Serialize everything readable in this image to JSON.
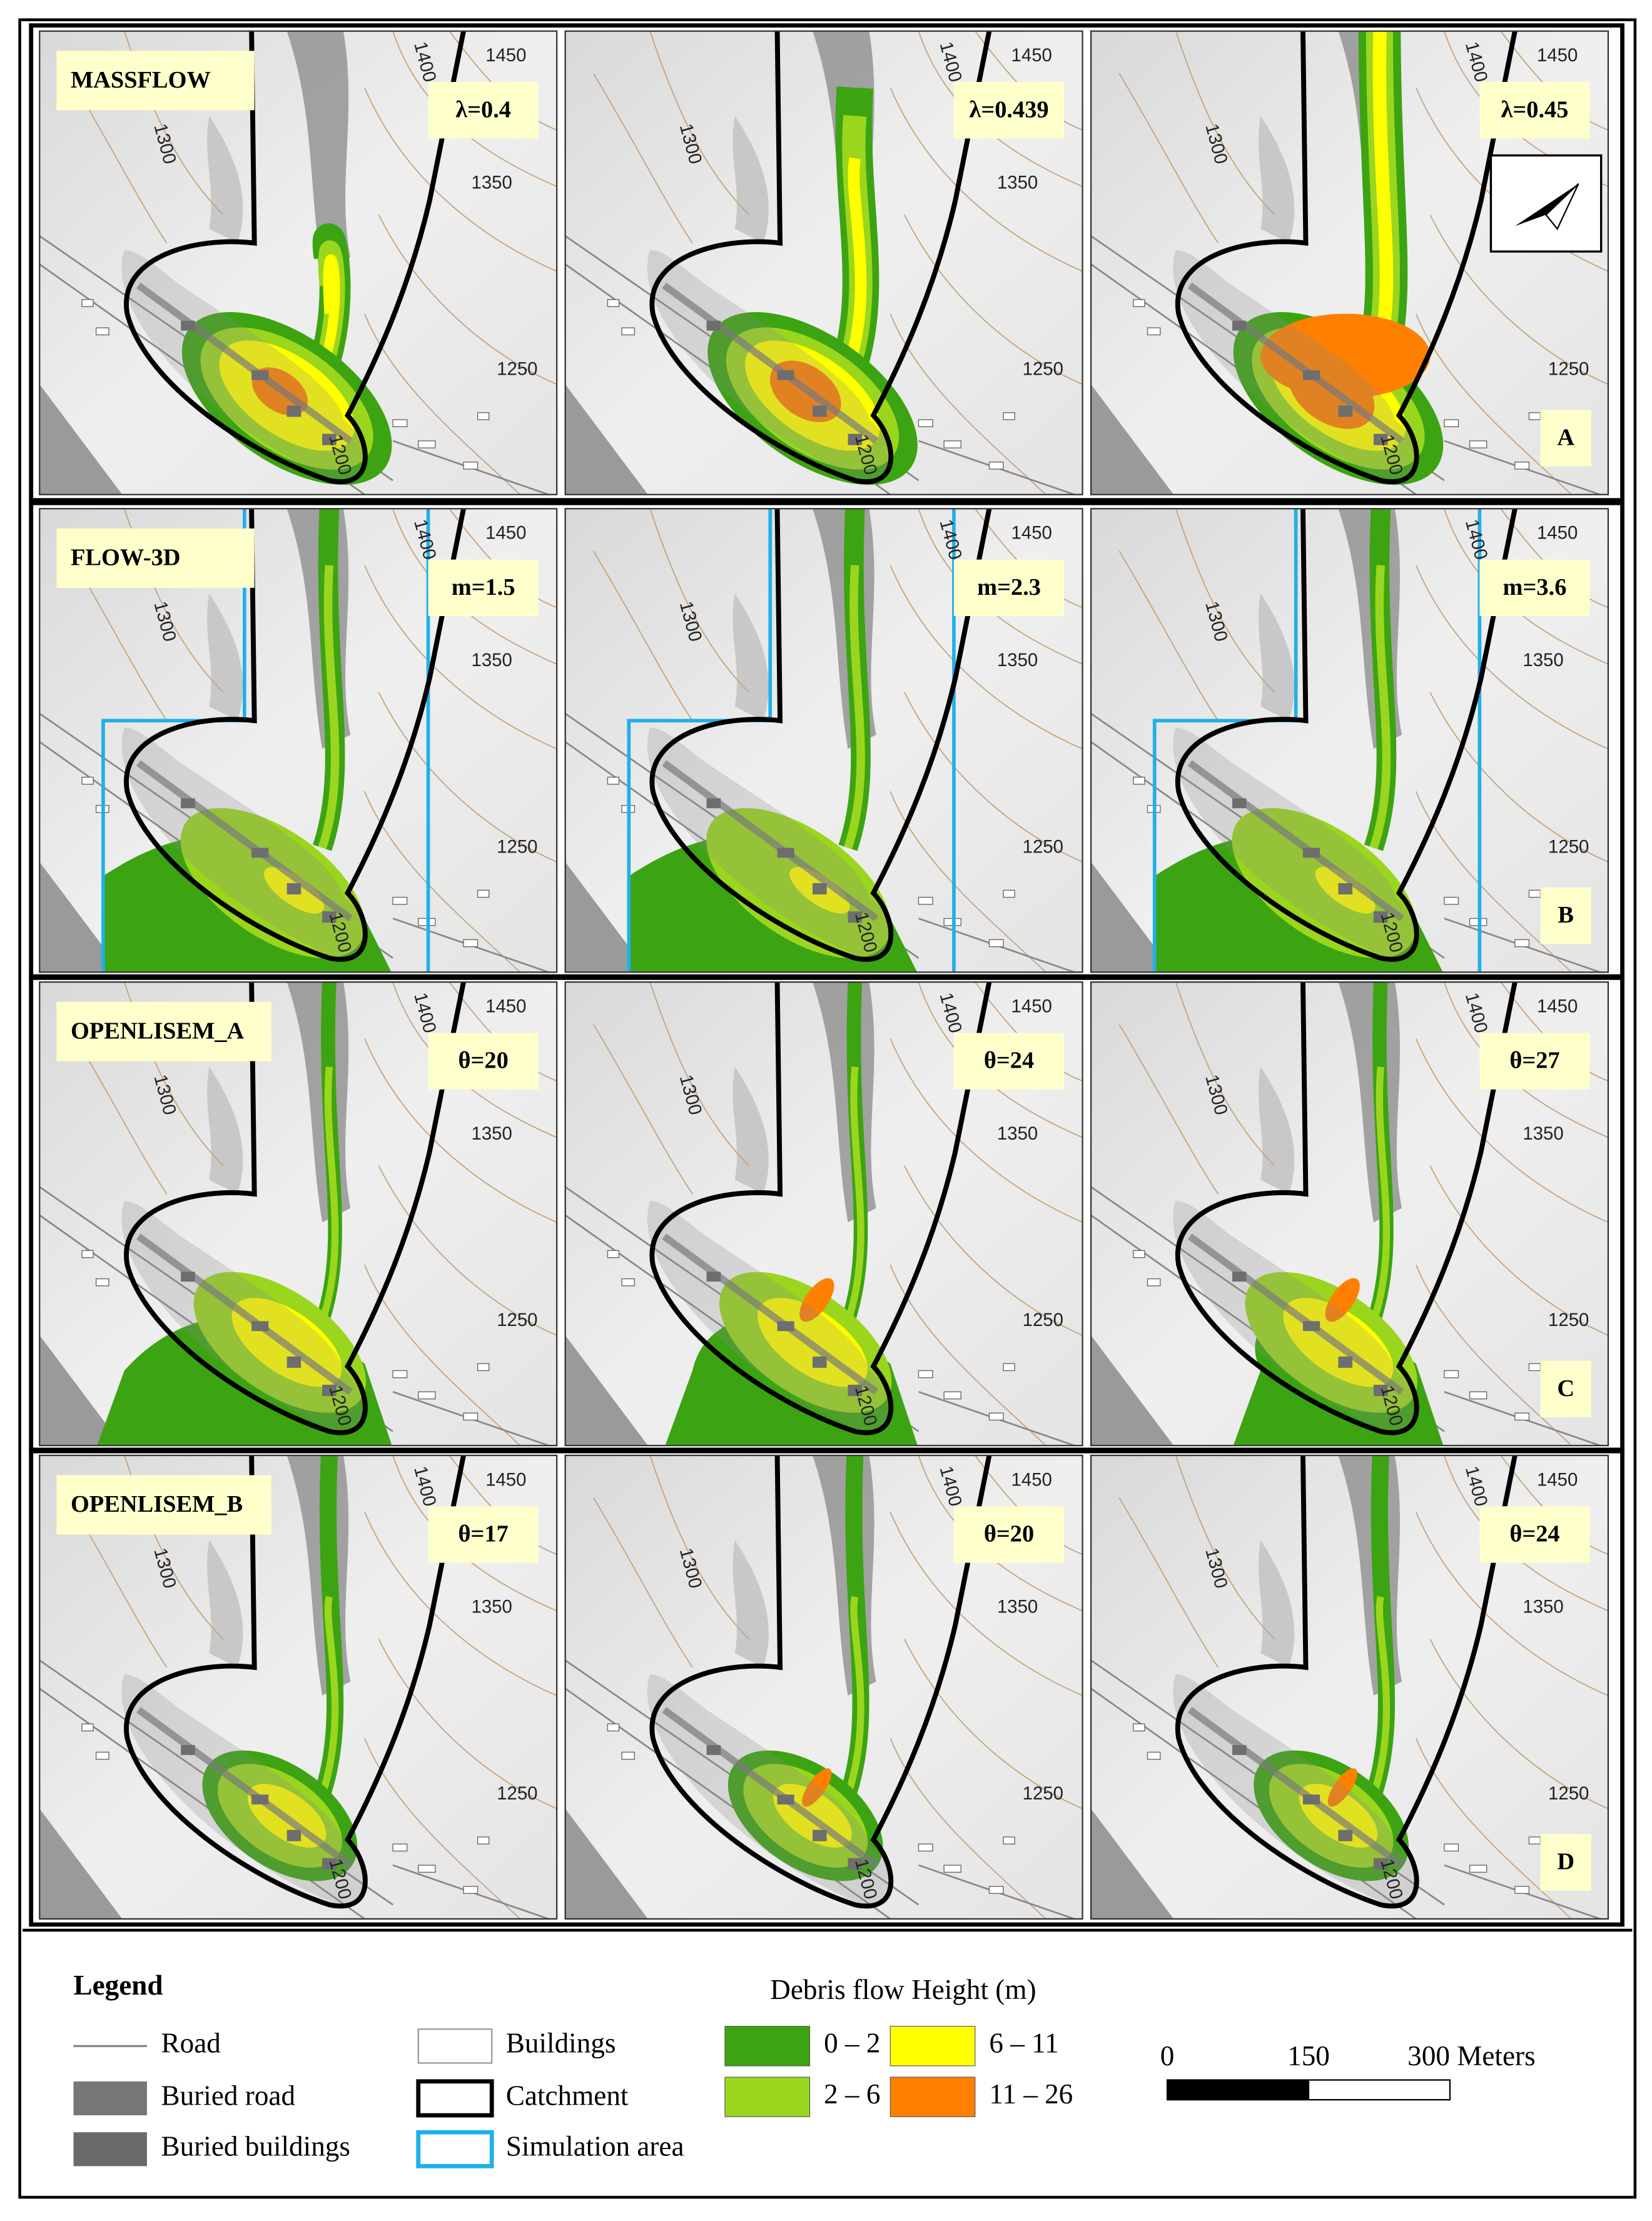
{
  "rows": [
    {
      "model": "MASSFLOW",
      "letter": "A",
      "params": [
        "λ=0.4",
        "λ=0.439",
        "λ=0.45"
      ]
    },
    {
      "model": "FLOW-3D",
      "letter": "B",
      "params": [
        "m=1.5",
        "m=2.3",
        "m=3.6"
      ]
    },
    {
      "model": "OPENLISEM_A",
      "letter": "C",
      "params": [
        "θ=20",
        "θ=24",
        "θ=27"
      ]
    },
    {
      "model": "OPENLISEM_B",
      "letter": "D",
      "params": [
        "θ=17",
        "θ=20",
        "θ=24"
      ]
    }
  ],
  "contours": [
    1450,
    1400,
    1350,
    1300,
    1250,
    1200
  ],
  "legend": {
    "title": "Legend",
    "items": [
      "Road",
      "Buried road",
      "Buried buildings",
      "Buildings",
      "Catchment",
      "Simulation area"
    ],
    "height_title": "Debris flow Height (m)",
    "classes": [
      {
        "label": "0 – 2",
        "color": "#3ca312"
      },
      {
        "label": "2 – 6",
        "color": "#9ad61e"
      },
      {
        "label": "6 – 11",
        "color": "#ffff00"
      },
      {
        "label": "11 – 26",
        "color": "#ff8000"
      }
    ]
  },
  "scale_bar": {
    "ticks": [
      0,
      150,
      300
    ],
    "unit": "Meters"
  }
}
